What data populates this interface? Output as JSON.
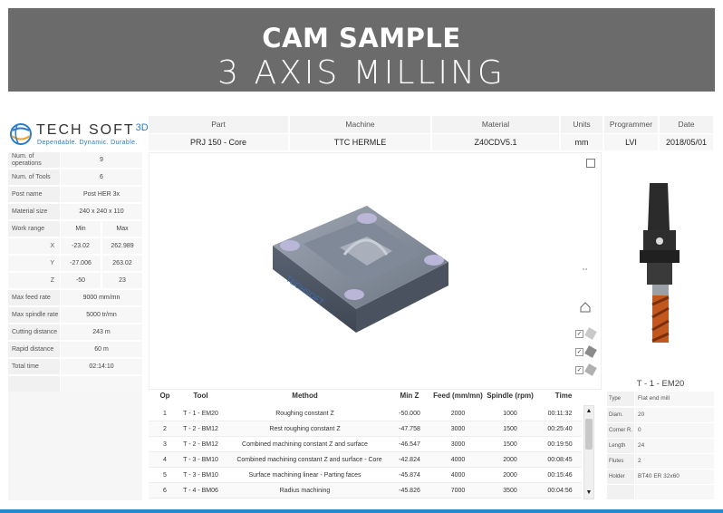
{
  "banner": {
    "title": "CAM SAMPLE",
    "subtitle": "3 AXIS MILLING"
  },
  "logo": {
    "name": "TECH SOFT",
    "sup": "3D",
    "tagline": "Dependable. Dynamic. Durable."
  },
  "header": {
    "columns": [
      {
        "label": "Part",
        "value": "PRJ 150 - Core"
      },
      {
        "label": "Machine",
        "value": "TTC HERMLE"
      },
      {
        "label": "Material",
        "value": "Z40CDV5.1"
      },
      {
        "label": "Units",
        "value": "mm"
      },
      {
        "label": "Programmer",
        "value": "LVI"
      },
      {
        "label": "Date",
        "value": "2018/05/01"
      }
    ]
  },
  "params": {
    "num_operations": {
      "label": "Num. of operations",
      "value": "9"
    },
    "num_tools": {
      "label": "Num. of Tools",
      "value": "6"
    },
    "post_name": {
      "label": "Post name",
      "value": "Post HER 3x"
    },
    "material_size": {
      "label": "Material size",
      "value": "240 x 240 x 110"
    },
    "work_range": {
      "label": "Work range",
      "min": "Min",
      "max": "Max"
    },
    "x": {
      "label": "X",
      "min": "-23.02",
      "max": "262.989"
    },
    "y": {
      "label": "Y",
      "min": "-27.006",
      "max": "263.02"
    },
    "z": {
      "label": "Z",
      "min": "-50",
      "max": "23"
    },
    "max_feed": {
      "label": "Max feed rate",
      "value": "9000 mm/mn"
    },
    "max_spindle": {
      "label": "Max spindle rate",
      "value": "5000 tr/mn"
    },
    "cutting_distance": {
      "label": "Cutting distance",
      "value": "243 m"
    },
    "rapid_distance": {
      "label": "Rapid distance",
      "value": "60 m"
    },
    "total_time": {
      "label": "Total time",
      "value": "02:14:10"
    }
  },
  "tool": {
    "name": "T - 1 - EM20",
    "props": [
      {
        "label": "Type",
        "value": "Flat end mill"
      },
      {
        "label": "Diam.",
        "value": "20"
      },
      {
        "label": "Corner R.",
        "value": "0"
      },
      {
        "label": "Length",
        "value": "24"
      },
      {
        "label": "Flutes",
        "value": "2"
      },
      {
        "label": "Holder",
        "value": "BT40 ER 32x60"
      }
    ]
  },
  "ops": {
    "headers": {
      "op": "Op",
      "tool": "Tool",
      "method": "Method",
      "minz": "Min Z",
      "feed": "Feed (mm/mn)",
      "spindle": "Spindle (rpm)",
      "time": "Time"
    },
    "rows": [
      {
        "op": "1",
        "tool": "T - 1 - EM20",
        "method": "Roughing constant Z",
        "minz": "-50.000",
        "feed": "2000",
        "spindle": "1000",
        "time": "00:11:32"
      },
      {
        "op": "2",
        "tool": "T - 2 - BM12",
        "method": "Rest roughing constant Z",
        "minz": "-47.758",
        "feed": "3000",
        "spindle": "1500",
        "time": "00:25:40"
      },
      {
        "op": "3",
        "tool": "T - 2 - BM12",
        "method": "Combined machining constant Z and surface",
        "minz": "-46.547",
        "feed": "3000",
        "spindle": "1500",
        "time": "00:19:50"
      },
      {
        "op": "4",
        "tool": "T - 3 - BM10",
        "method": "Combined machining constant Z and surface - Core",
        "minz": "-42.824",
        "feed": "4000",
        "spindle": "2000",
        "time": "00:08:45"
      },
      {
        "op": "5",
        "tool": "T - 3 - BM10",
        "method": "Surface machining linear - Parting faces",
        "minz": "-45.874",
        "feed": "4000",
        "spindle": "2000",
        "time": "00:15:46"
      },
      {
        "op": "6",
        "tool": "T - 4 - BM06",
        "method": "Radius machining",
        "minz": "-45.826",
        "feed": "7000",
        "spindle": "3500",
        "time": "00:04:56"
      }
    ]
  },
  "viewer": {
    "model_watermark": "TECHSOFT"
  },
  "icons": {
    "expand": "expand-icon",
    "home": "home-icon",
    "scroll_up": "▲",
    "scroll_down": "▼",
    "check": "✓"
  },
  "colors": {
    "banner": "#6b6b6b",
    "accent": "#2a87c8",
    "tool_flute": "#c2581f"
  }
}
